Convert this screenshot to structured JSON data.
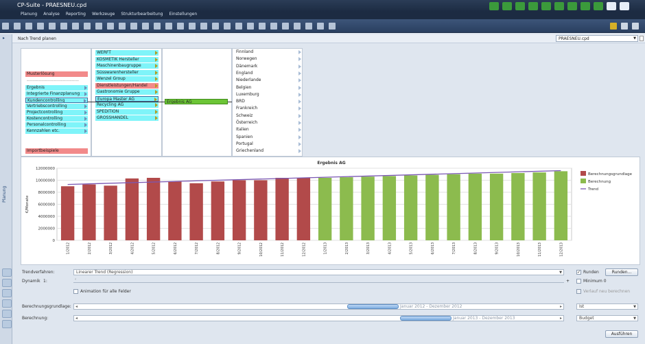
{
  "window": {
    "title": "CP-Suite - PRAESNEU.cpd"
  },
  "menu": [
    "Planung",
    "Analyse",
    "Reporting",
    "Werkzeuge",
    "Strukturbearbeitung",
    "Einstellungen"
  ],
  "nav": {
    "title": "Nach Trend planen",
    "file_select": "PRAESNEU.cpd"
  },
  "side_tab": "Planung",
  "col1": {
    "top": "Musterlösung",
    "divider": "-----------------------------------",
    "items": [
      "Ergebnis",
      "Integrierte Finanzplanung",
      "Kundencontrolling",
      "Vertriebscontrolling",
      "Projectcontrolling",
      "Kostencontrolling",
      "Personalcontrolling",
      "Kennzahlen etc."
    ],
    "bottom": "Importbeispiele"
  },
  "col2": {
    "items": [
      "WERFT",
      "KOSMETIK Hersteller",
      "Maschinenbaugruppe",
      "Süsswarenhersteller",
      "Wenzel Group",
      "Dienstleistungen/Handel",
      "Gastronomie Gruppe",
      "Europa Master AG",
      "Recycling AG",
      "SPEDITION",
      "GROSSHANDEL"
    ]
  },
  "col3": {
    "selected": "Ergebnis AG"
  },
  "col4": {
    "items": [
      "Finnland",
      "Norwegen",
      "Dänemark",
      "England",
      "Niederlande",
      "Belgien",
      "Luxemburg",
      "BRD",
      "Frankreich",
      "Schweiz",
      "Österreich",
      "Italien",
      "Spanien",
      "Portugal",
      "Griechenland"
    ]
  },
  "chart_data": {
    "type": "bar",
    "title": "Ergebnis AG",
    "xlabel": "",
    "ylabel": "€/Monate",
    "ylim": [
      0,
      12000000
    ],
    "yticks": [
      "0",
      "2000000",
      "4000000",
      "6000000",
      "8000000",
      "10000000",
      "12000000"
    ],
    "categories": [
      "1/2012",
      "2/2012",
      "3/2012",
      "4/2012",
      "5/2012",
      "6/2012",
      "7/2012",
      "8/2012",
      "9/2012",
      "10/2012",
      "11/2012",
      "12/2012",
      "1/2013",
      "2/2013",
      "3/2013",
      "4/2013",
      "5/2013",
      "6/2013",
      "7/2013",
      "8/2013",
      "9/2013",
      "10/2013",
      "11/2013",
      "12/2013"
    ],
    "values": [
      9000000,
      9300000,
      9100000,
      10300000,
      10400000,
      9800000,
      9500000,
      9800000,
      10000000,
      10000000,
      10400000,
      10400000,
      10400000,
      10500000,
      10600000,
      10700000,
      10800000,
      10900000,
      11000000,
      11100000,
      11100000,
      11200000,
      11300000,
      11500000
    ],
    "base_count": 12,
    "trend": [
      9300000,
      11600000
    ],
    "legend": [
      "Berechnungsgrundlage",
      "Berechnung",
      "Trend"
    ],
    "legend_position": "right",
    "colors": {
      "base": "#b24a4a",
      "calc": "#8cbb4e",
      "trend": "#7a57b3"
    },
    "grid": true
  },
  "form": {
    "method_label": "Trendverfahren:",
    "method_value": "Linearer Trend (Regression)",
    "dynamic_label": "Dynamik",
    "dynamic_value": "1:",
    "anim_label": "Animation für alle Felder",
    "round_label": "Runden",
    "round_btn": "Runden...",
    "min_label": "Minimum 0",
    "recalc_label": "Verlauf neu berechnen",
    "base_label": "Berechnungsgrundlage:",
    "base_range": "Januar 2012 - Dezember 2012",
    "base_select": "Ist",
    "calc_label": "Berechnung:",
    "calc_range": "Januar 2013 - Dezember 2013",
    "calc_select": "Budget",
    "execute": "Ausführen"
  }
}
